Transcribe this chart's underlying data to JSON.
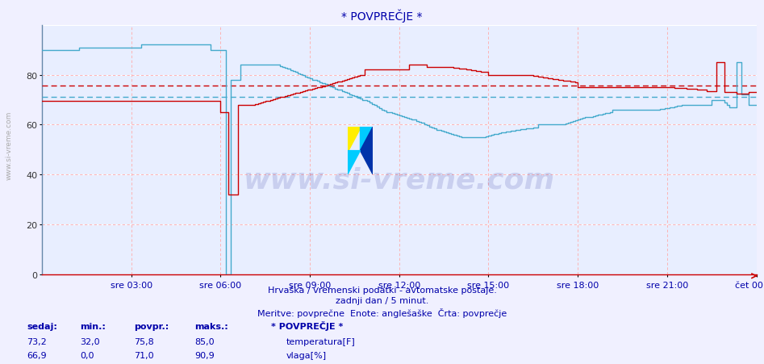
{
  "title": "* POVPREČJE *",
  "bg_color": "#f0f0ff",
  "plot_bg_color": "#e8eeff",
  "grid_white_color": "#ffffff",
  "grid_pink_color": "#ffaaaa",
  "temp_color": "#cc0000",
  "humid_color": "#44aacc",
  "avg_temp_color": "#cc0000",
  "avg_humid_color": "#44aacc",
  "xlabel_color": "#0000aa",
  "title_color": "#0000aa",
  "text_color": "#0000aa",
  "xlabels": [
    "sre 03:00",
    "sre 06:00",
    "sre 09:00",
    "sre 12:00",
    "sre 15:00",
    "sre 18:00",
    "sre 21:00",
    "čet 00:00"
  ],
  "ylim": [
    0,
    100
  ],
  "yticks": [
    0,
    20,
    40,
    60,
    80
  ],
  "subtitle1": "Hrvaška / vremenski podatki - avtomatske postaje.",
  "subtitle2": "zadnji dan / 5 minut.",
  "subtitle3": "Meritve: povprečne  Enote: anglešaške  Črta: povprečje",
  "footer_label1": "sedaj:",
  "footer_label2": "min.:",
  "footer_label3": "povpr.:",
  "footer_label4": "maks.:",
  "footer_title": "* POVPREČJE *",
  "temp_sedaj": "73,2",
  "temp_min": "32,0",
  "temp_povpr": "75,8",
  "temp_maks": "85,0",
  "humid_sedaj": "66,9",
  "humid_min": "0,0",
  "humid_povpr": "71,0",
  "humid_maks": "90,9",
  "avg_temp": 75.8,
  "avg_humid": 71.0,
  "n_points": 289,
  "xtick_indices": [
    36,
    72,
    108,
    144,
    180,
    216,
    252,
    288
  ],
  "watermark": "www.si-vreme.com",
  "side_label": "www.si-vreme.com"
}
